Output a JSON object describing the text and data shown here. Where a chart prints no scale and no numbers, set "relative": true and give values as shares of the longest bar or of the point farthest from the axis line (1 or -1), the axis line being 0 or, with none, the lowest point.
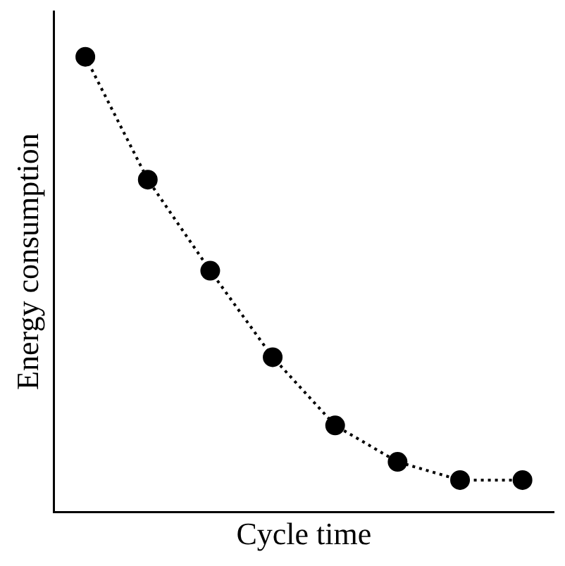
{
  "chart_data": {
    "type": "line",
    "relative": true,
    "xlabel": "Cycle time",
    "ylabel": "Energy consumption",
    "categories": [
      null,
      null,
      null,
      null,
      null,
      null,
      null,
      null
    ],
    "series": [
      {
        "color": "#000000",
        "values": [
          1,
          0.73,
          0.53,
          0.34,
          0.19,
          0.11,
          0.07,
          0.07
        ]
      }
    ],
    "marker": "circle",
    "line_style": "dotted",
    "grid": false,
    "legend": false,
    "tick_labels": false
  }
}
